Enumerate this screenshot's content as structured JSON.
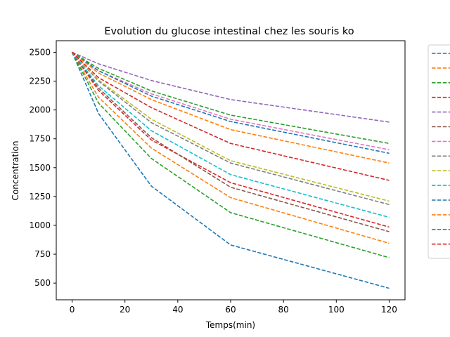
{
  "chart_data": {
    "type": "line",
    "title": "Evolution du glucose intestinal chez les souris ko",
    "xlabel": "Temps(min)",
    "ylabel": "Concentration",
    "xlim": [
      -6,
      126
    ],
    "ylim": [
      355,
      2600
    ],
    "xticks": [
      0,
      20,
      40,
      60,
      80,
      100,
      120
    ],
    "yticks": [
      500,
      750,
      1000,
      1250,
      1500,
      1750,
      2000,
      2250,
      2500
    ],
    "x": [
      0,
      10,
      30,
      60,
      120
    ],
    "grid": false,
    "legend_placement": "outside-right",
    "line_style": "dashed",
    "series": [
      {
        "color": "#1f77b4",
        "values": [
          2500,
          1970,
          1340,
          830,
          455
        ]
      },
      {
        "color": "#ff7f0e",
        "values": [
          2500,
          2110,
          1670,
          1240,
          845
        ]
      },
      {
        "color": "#2ca02c",
        "values": [
          2500,
          2060,
          1580,
          1110,
          720
        ]
      },
      {
        "color": "#d62728",
        "values": [
          2500,
          2170,
          1740,
          1370,
          985
        ]
      },
      {
        "color": "#9467bd",
        "values": [
          2500,
          2400,
          2255,
          2090,
          1895
        ]
      },
      {
        "color": "#8c564b",
        "values": [
          2500,
          2190,
          1760,
          1330,
          945
        ]
      },
      {
        "color": "#e377c2",
        "values": [
          2500,
          2340,
          2140,
          1920,
          1655
        ]
      },
      {
        "color": "#7f7f7f",
        "values": [
          2500,
          2250,
          1890,
          1540,
          1180
        ]
      },
      {
        "color": "#bcbd22",
        "values": [
          2500,
          2260,
          1920,
          1560,
          1210
        ]
      },
      {
        "color": "#17becf",
        "values": [
          2500,
          2210,
          1820,
          1440,
          1070
        ]
      },
      {
        "color": "#1f77b4",
        "values": [
          2500,
          2340,
          2120,
          1900,
          1625
        ]
      },
      {
        "color": "#ff7f0e",
        "values": [
          2500,
          2320,
          2090,
          1830,
          1540
        ]
      },
      {
        "color": "#2ca02c",
        "values": [
          2500,
          2360,
          2165,
          1955,
          1710
        ]
      },
      {
        "color": "#d62728",
        "values": [
          2500,
          2280,
          2020,
          1710,
          1390
        ]
      }
    ]
  }
}
